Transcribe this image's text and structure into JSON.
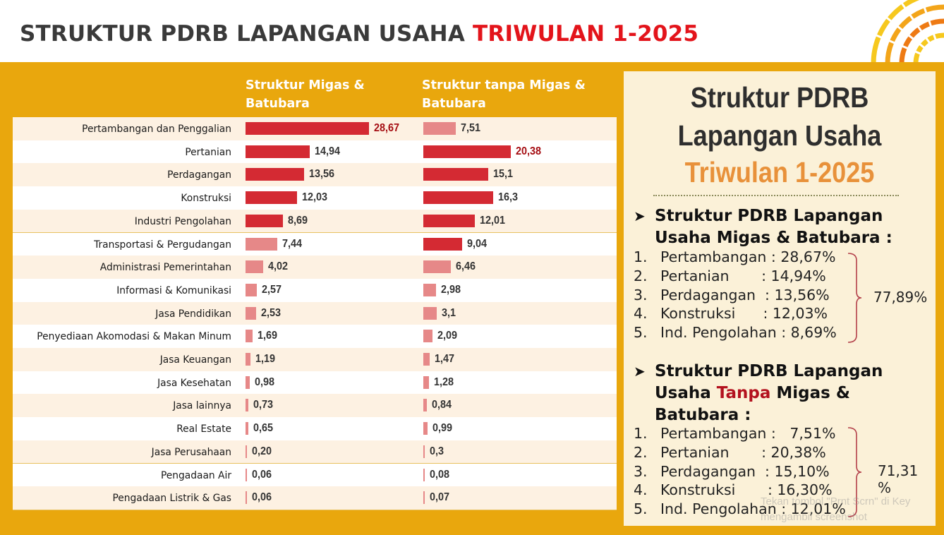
{
  "title": {
    "main": "STRUKTUR PDRB LAPANGAN USAHA",
    "highlight": "TRIWULAN 1-2025"
  },
  "colors": {
    "title_highlight": "#e3141b",
    "panel": "#e9a70d",
    "bar_dark": "#d42a33",
    "bar_light": "#e68888",
    "label_highlight": "#a50d12",
    "side_orange": "#e8913a"
  },
  "chart_data": {
    "type": "bar",
    "orientation": "horizontal",
    "categories": [
      "Pertambangan dan Penggalian",
      "Pertanian",
      "Perdagangan",
      "Konstruksi",
      "Industri Pengolahan",
      "Transportasi & Pergudangan",
      "Administrasi Pemerintahan",
      "Informasi & Komunikasi",
      "Jasa Pendidikan",
      "Penyediaan Akomodasi & Makan Minum",
      "Jasa Keuangan",
      "Jasa Kesehatan",
      "Jasa lainnya",
      "Real Estate",
      "Jasa Perusahaan",
      "Pengadaan Air",
      "Pengadaan Listrik & Gas"
    ],
    "series": [
      {
        "name": "Struktur Migas & Batubara",
        "values": [
          28.67,
          14.94,
          13.56,
          12.03,
          8.69,
          7.44,
          4.02,
          2.57,
          2.53,
          1.69,
          1.19,
          0.98,
          0.73,
          0.65,
          0.2,
          0.06,
          0.06
        ],
        "labels": [
          "28,67",
          "14,94",
          "13,56",
          "12,03",
          "8,69",
          "7,44",
          "4,02",
          "2,57",
          "2,53",
          "1,69",
          "1,19",
          "0,98",
          "0,73",
          "0,65",
          "0,20",
          "0,06",
          "0,06"
        ]
      },
      {
        "name": "Struktur tanpa Migas & Batubara",
        "values": [
          7.51,
          20.38,
          15.1,
          16.3,
          12.01,
          9.04,
          6.46,
          2.98,
          3.1,
          2.09,
          1.47,
          1.28,
          0.84,
          0.99,
          0.3,
          0.08,
          0.07
        ],
        "labels": [
          "7,51",
          "20,38",
          "15,1",
          "16,3",
          "12,01",
          "9,04",
          "6,46",
          "2,98",
          "3,1",
          "2,09",
          "1,47",
          "1,28",
          "0,84",
          "0,99",
          "0,3",
          "0,08",
          "0,07"
        ]
      }
    ],
    "bar_shading": [
      [
        "dark",
        "dark",
        "dark",
        "dark",
        "dark",
        "light",
        "light",
        "light",
        "light",
        "light",
        "light",
        "light",
        "light",
        "light",
        "light",
        "light",
        "light"
      ],
      [
        "light",
        "dark",
        "dark",
        "dark",
        "dark",
        "dark",
        "light",
        "light",
        "light",
        "light",
        "light",
        "light",
        "light",
        "light",
        "light",
        "light",
        "light"
      ]
    ],
    "highlighted": [
      [
        0
      ],
      [
        1
      ]
    ]
  },
  "side": {
    "title_line1": "Struktur PDRB",
    "title_line2": "Lapangan Usaha",
    "title_line3": "Triwulan 1-2025",
    "sec1": {
      "head_line1": "Struktur PDRB Lapangan",
      "head_line2": "Usaha Migas & Batubara :",
      "items": [
        {
          "num": "1.",
          "text": "Pertambangan : 28,67%"
        },
        {
          "num": "2.",
          "text": "Pertanian       : 14,94%"
        },
        {
          "num": "3.",
          "text": "Perdagangan  : 13,56%"
        },
        {
          "num": "4.",
          "text": "Konstruksi      : 12,03%"
        },
        {
          "num": "5.",
          "text": "Ind. Pengolahan : 8,69%"
        }
      ],
      "total": "77,89%"
    },
    "sec2": {
      "head_line1": "Struktur PDRB Lapangan",
      "head_line2_a": "Usaha ",
      "head_line2_red": "Tanpa",
      "head_line2_b": " Migas &",
      "head_line3": "Batubara :",
      "items": [
        {
          "num": "1.",
          "text": "Pertambangan :   7,51%"
        },
        {
          "num": "2.",
          "text": "Pertanian       : 20,38%"
        },
        {
          "num": "3.",
          "text": "Perdagangan  : 15,10%"
        },
        {
          "num": "4.",
          "text": "Konstruksi       : 16,30%"
        },
        {
          "num": "5.",
          "text": "Ind. Pengolahan : 12,01%"
        }
      ],
      "total": "71,31 %"
    }
  },
  "watermark": {
    "line1": "Tekan tombol \"Prnt Scrn\" di Key",
    "line2": "mengambil screenshot"
  }
}
